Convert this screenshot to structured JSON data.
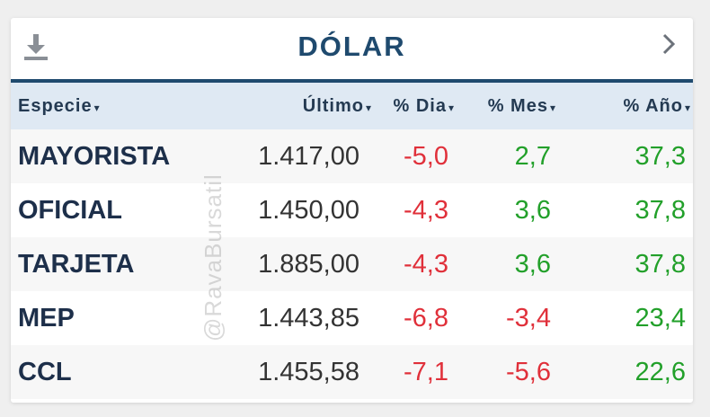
{
  "header": {
    "title": "DÓLAR",
    "download_icon": "download-icon",
    "next_icon": "chevron-right-icon"
  },
  "columns": [
    {
      "key": "especie",
      "label": "Especie"
    },
    {
      "key": "ultimo",
      "label": "Último"
    },
    {
      "key": "dia",
      "label": "% Dia"
    },
    {
      "key": "mes",
      "label": "% Mes"
    },
    {
      "key": "anio",
      "label": "% Año"
    }
  ],
  "sort_caret": "▾",
  "rows": [
    {
      "especie": "MAYORISTA",
      "ultimo": "1.417,00",
      "dia": "-5,0",
      "mes": "2,7",
      "anio": "37,3"
    },
    {
      "especie": "OFICIAL",
      "ultimo": "1.450,00",
      "dia": "-4,3",
      "mes": "3,6",
      "anio": "37,8"
    },
    {
      "especie": "TARJETA",
      "ultimo": "1.885,00",
      "dia": "-4,3",
      "mes": "3,6",
      "anio": "37,8"
    },
    {
      "especie": "MEP",
      "ultimo": "1.443,85",
      "dia": "-6,8",
      "mes": "-3,4",
      "anio": "23,4"
    },
    {
      "especie": "CCL",
      "ultimo": "1.455,58",
      "dia": "-7,1",
      "mes": "-5,6",
      "anio": "22,6"
    }
  ],
  "watermark": "@RavaBursatil",
  "colors": {
    "brand": "#1f4a6e",
    "negative": "#e0303a",
    "positive": "#22a02a",
    "header_bg": "#dfe9f3"
  }
}
